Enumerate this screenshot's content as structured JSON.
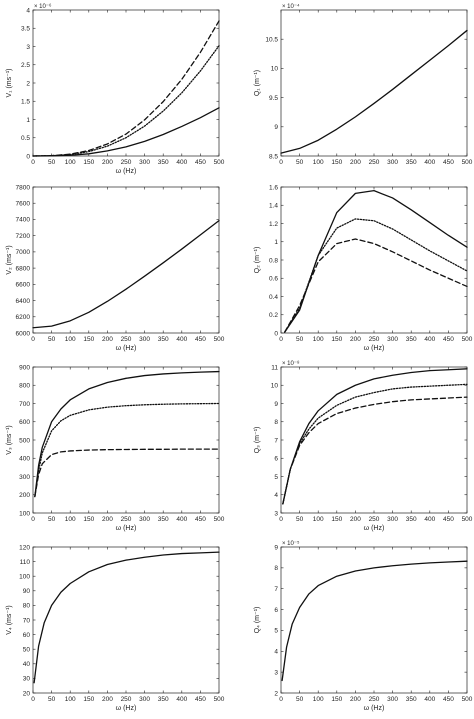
{
  "chart_data": [
    {
      "type": "line",
      "ylabel": "V₁ (ms⁻¹)",
      "xlabel": "ω (Hz)",
      "ymult": "× 10⁻⁶",
      "xlim": [
        0,
        500
      ],
      "ylim": [
        0,
        4
      ],
      "xticks": [
        "0",
        "50",
        "100",
        "150",
        "200",
        "250",
        "300",
        "350",
        "400",
        "450",
        "500"
      ],
      "yticks": [
        "0",
        "0.5",
        "1",
        "1.5",
        "2",
        "2.5",
        "3",
        "3.5",
        "4"
      ],
      "series": [
        {
          "style": "solid",
          "x": [
            0,
            50,
            100,
            150,
            200,
            250,
            300,
            350,
            400,
            450,
            500
          ],
          "y": [
            0,
            0.005,
            0.02,
            0.06,
            0.14,
            0.25,
            0.4,
            0.59,
            0.81,
            1.05,
            1.32
          ]
        },
        {
          "style": "dotted",
          "x": [
            0,
            50,
            100,
            150,
            200,
            250,
            300,
            350,
            400,
            450,
            500
          ],
          "y": [
            0,
            0.008,
            0.04,
            0.12,
            0.27,
            0.5,
            0.82,
            1.23,
            1.73,
            2.33,
            3.02
          ]
        },
        {
          "style": "dashed",
          "x": [
            0,
            50,
            100,
            150,
            200,
            250,
            300,
            350,
            400,
            450,
            500
          ],
          "y": [
            0,
            0.01,
            0.05,
            0.15,
            0.33,
            0.6,
            0.99,
            1.49,
            2.1,
            2.84,
            3.7
          ]
        }
      ]
    },
    {
      "type": "line",
      "ylabel": "Q₁ (m⁻¹)",
      "xlabel": "",
      "ymult": "× 10⁻⁴",
      "xlim": [
        0,
        500
      ],
      "ylim": [
        8.5,
        11
      ],
      "xticks": [
        "0",
        "50",
        "100",
        "150",
        "200",
        "250",
        "300",
        "350",
        "400",
        "450",
        "500"
      ],
      "yticks": [
        "8.5",
        "9",
        "9.5",
        "10",
        "10.5"
      ],
      "series": [
        {
          "style": "solid",
          "x": [
            0,
            50,
            100,
            150,
            200,
            250,
            300,
            350,
            400,
            450,
            500
          ],
          "y": [
            8.55,
            8.63,
            8.77,
            8.96,
            9.17,
            9.4,
            9.64,
            9.89,
            10.14,
            10.39,
            10.65
          ]
        }
      ]
    },
    {
      "type": "line",
      "ylabel": "V₂ (ms⁻¹)",
      "xlabel": "ω (Hz)",
      "ymult": "",
      "xlim": [
        0,
        500
      ],
      "ylim": [
        6000,
        7800
      ],
      "xticks": [
        "0",
        "50",
        "100",
        "150",
        "200",
        "250",
        "300",
        "350",
        "400",
        "450",
        "500"
      ],
      "yticks": [
        "6000",
        "6200",
        "6400",
        "6600",
        "6800",
        "7000",
        "7200",
        "7400",
        "7600",
        "7800"
      ],
      "series": [
        {
          "style": "solid",
          "x": [
            0,
            50,
            100,
            150,
            200,
            250,
            300,
            350,
            400,
            450,
            500
          ],
          "y": [
            6065,
            6085,
            6150,
            6255,
            6390,
            6540,
            6700,
            6865,
            7035,
            7210,
            7385
          ]
        }
      ]
    },
    {
      "type": "line",
      "ylabel": "Q₂ (m⁻¹)",
      "xlabel": "ω (Hz)",
      "ymult": "",
      "xlim": [
        0,
        500
      ],
      "ylim": [
        0,
        1.6
      ],
      "xticks": [
        "0",
        "50",
        "100",
        "150",
        "200",
        "250",
        "300",
        "350",
        "400",
        "450",
        "500"
      ],
      "yticks": [
        "0",
        "0.2",
        "0.4",
        "0.6",
        "0.8",
        "1",
        "1.2",
        "1.4",
        "1.6"
      ],
      "series": [
        {
          "style": "solid",
          "x": [
            10,
            50,
            100,
            150,
            200,
            250,
            300,
            350,
            400,
            450,
            500
          ],
          "y": [
            0.01,
            0.25,
            0.85,
            1.32,
            1.53,
            1.56,
            1.48,
            1.35,
            1.21,
            1.07,
            0.94
          ]
        },
        {
          "style": "dotted",
          "x": [
            10,
            50,
            100,
            150,
            200,
            250,
            300,
            350,
            400,
            450,
            500
          ],
          "y": [
            0.01,
            0.27,
            0.85,
            1.15,
            1.25,
            1.23,
            1.14,
            1.02,
            0.9,
            0.79,
            0.68
          ]
        },
        {
          "style": "dashed",
          "x": [
            10,
            50,
            100,
            150,
            200,
            250,
            300,
            350,
            400,
            450,
            500
          ],
          "y": [
            0.01,
            0.3,
            0.78,
            0.98,
            1.03,
            0.98,
            0.89,
            0.79,
            0.69,
            0.6,
            0.51
          ]
        }
      ]
    },
    {
      "type": "line",
      "ylabel": "V₃ (ms⁻¹)",
      "xlabel": "ω (Hz)",
      "ymult": "",
      "xlim": [
        0,
        500
      ],
      "ylim": [
        100,
        900
      ],
      "xticks": [
        "0",
        "50",
        "100",
        "150",
        "200",
        "250",
        "300",
        "350",
        "400",
        "450",
        "500"
      ],
      "yticks": [
        "100",
        "200",
        "300",
        "400",
        "500",
        "600",
        "700",
        "800",
        "900"
      ],
      "series": [
        {
          "style": "solid",
          "x": [
            5,
            15,
            25,
            50,
            75,
            100,
            150,
            200,
            250,
            300,
            350,
            400,
            450,
            500
          ],
          "y": [
            190,
            360,
            460,
            600,
            670,
            720,
            780,
            815,
            838,
            853,
            862,
            868,
            872,
            875
          ]
        },
        {
          "style": "dotted",
          "x": [
            5,
            15,
            25,
            50,
            75,
            100,
            150,
            200,
            250,
            300,
            350,
            400,
            450,
            500
          ],
          "y": [
            190,
            330,
            430,
            550,
            605,
            635,
            665,
            680,
            688,
            693,
            696,
            698,
            699,
            700
          ]
        },
        {
          "style": "dashed",
          "x": [
            5,
            15,
            25,
            50,
            75,
            100,
            150,
            200,
            250,
            300,
            350,
            400,
            450,
            500
          ],
          "y": [
            190,
            310,
            370,
            420,
            435,
            440,
            445,
            447,
            448,
            449,
            449,
            450,
            450,
            450
          ]
        }
      ]
    },
    {
      "type": "line",
      "ylabel": "Q₃ (m⁻¹)",
      "xlabel": "ω (Hz)",
      "ymult": "× 10⁻⁸",
      "xlim": [
        0,
        500
      ],
      "ylim": [
        3,
        11
      ],
      "xticks": [
        "0",
        "50",
        "100",
        "150",
        "200",
        "250",
        "300",
        "350",
        "400",
        "450",
        "500"
      ],
      "yticks": [
        "3",
        "4",
        "5",
        "6",
        "7",
        "8",
        "9",
        "10",
        "11"
      ],
      "series": [
        {
          "style": "solid",
          "x": [
            5,
            25,
            50,
            75,
            100,
            150,
            200,
            250,
            300,
            350,
            400,
            450,
            500
          ],
          "y": [
            3.5,
            5.4,
            6.9,
            7.9,
            8.6,
            9.5,
            10.0,
            10.35,
            10.55,
            10.7,
            10.8,
            10.85,
            10.9
          ]
        },
        {
          "style": "dotted",
          "x": [
            5,
            25,
            50,
            75,
            100,
            150,
            200,
            250,
            300,
            350,
            400,
            450,
            500
          ],
          "y": [
            3.5,
            5.4,
            6.8,
            7.6,
            8.2,
            8.9,
            9.35,
            9.6,
            9.8,
            9.9,
            9.95,
            10.0,
            10.05
          ]
        },
        {
          "style": "dashed",
          "x": [
            5,
            25,
            50,
            75,
            100,
            150,
            200,
            250,
            300,
            350,
            400,
            450,
            500
          ],
          "y": [
            3.5,
            5.4,
            6.7,
            7.4,
            7.9,
            8.45,
            8.75,
            8.95,
            9.1,
            9.2,
            9.25,
            9.3,
            9.35
          ]
        }
      ]
    },
    {
      "type": "line",
      "ylabel": "V₄ (ms⁻¹)",
      "xlabel": "ω (Hz)",
      "ymult": "",
      "xlim": [
        0,
        500
      ],
      "ylim": [
        20,
        120
      ],
      "xticks": [
        "0",
        "50",
        "100",
        "150",
        "200",
        "250",
        "300",
        "350",
        "400",
        "450",
        "500"
      ],
      "yticks": [
        "20",
        "30",
        "40",
        "50",
        "60",
        "70",
        "80",
        "90",
        "100",
        "110",
        "120"
      ],
      "series": [
        {
          "style": "solid",
          "x": [
            3,
            15,
            30,
            50,
            75,
            100,
            150,
            200,
            250,
            300,
            350,
            400,
            450,
            500
          ],
          "y": [
            27,
            52,
            68,
            80,
            89,
            95,
            103,
            108,
            111,
            113,
            114.5,
            115.5,
            116,
            116.5
          ]
        }
      ]
    },
    {
      "type": "line",
      "ylabel": "Q₄ (m⁻¹)",
      "xlabel": "ω (Hz)",
      "ymult": "× 10⁻⁵",
      "xlim": [
        0,
        500
      ],
      "ylim": [
        2,
        9
      ],
      "xticks": [
        "0",
        "50",
        "100",
        "150",
        "200",
        "250",
        "300",
        "350",
        "400",
        "450",
        "500"
      ],
      "yticks": [
        "2",
        "3",
        "4",
        "5",
        "6",
        "7",
        "8",
        "9"
      ],
      "series": [
        {
          "style": "solid",
          "x": [
            3,
            15,
            30,
            50,
            75,
            100,
            150,
            200,
            250,
            300,
            350,
            400,
            450,
            500
          ],
          "y": [
            2.6,
            4.2,
            5.3,
            6.1,
            6.75,
            7.15,
            7.6,
            7.85,
            8.0,
            8.1,
            8.18,
            8.24,
            8.28,
            8.32
          ]
        }
      ]
    }
  ]
}
